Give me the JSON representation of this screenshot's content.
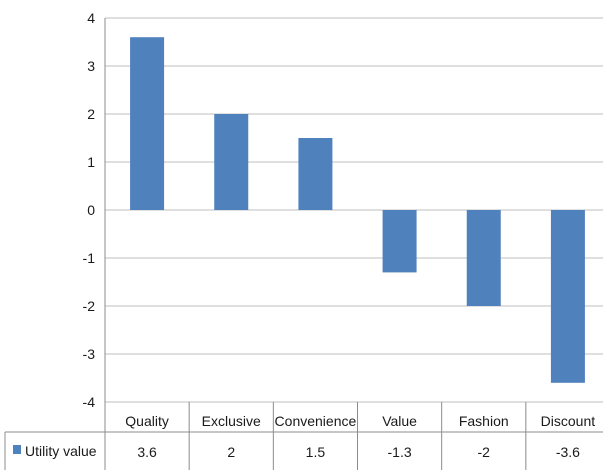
{
  "chart_data": {
    "type": "bar",
    "categories": [
      "Quality",
      "Exclusive",
      "Convenience",
      "Value",
      "Fashion",
      "Discount"
    ],
    "series": [
      {
        "name": "Utility value",
        "values": [
          3.6,
          2,
          1.5,
          -1.3,
          -2,
          -3.6
        ],
        "value_labels": [
          "3.6",
          "2",
          "1.5",
          "-1.3",
          "-2",
          "-3.6"
        ],
        "color": "#4f81bd"
      }
    ],
    "ylim": [
      -4,
      4
    ],
    "yticks": [
      4,
      3,
      2,
      1,
      0,
      -1,
      -2,
      -3,
      -4
    ],
    "grid": true,
    "legend": "data-table-left",
    "data_table": true
  }
}
